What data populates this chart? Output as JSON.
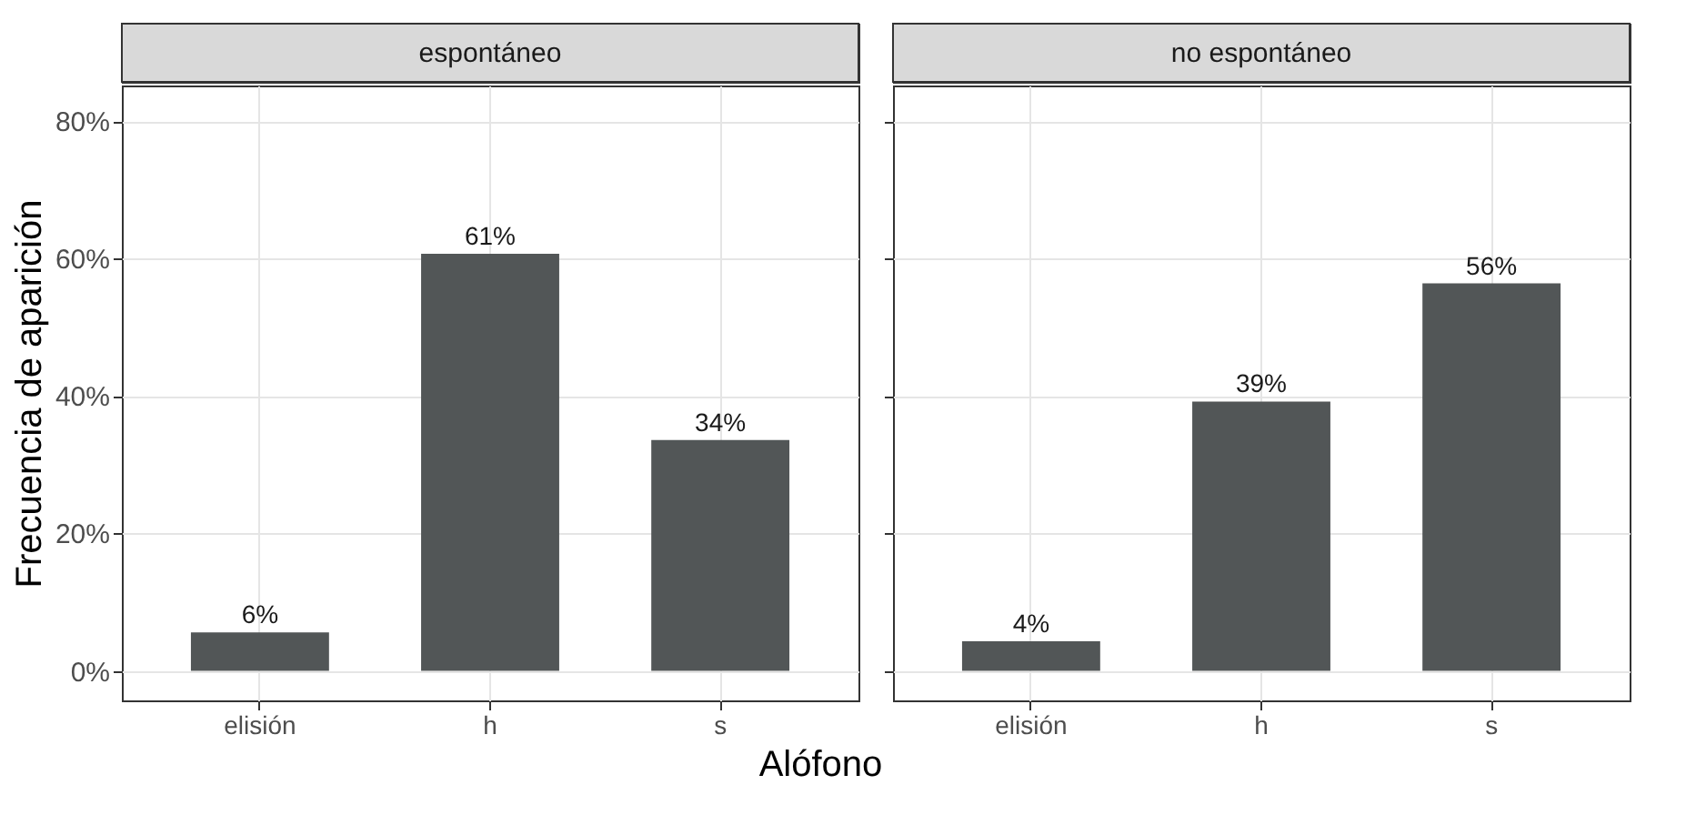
{
  "chart_data": [
    {
      "type": "bar",
      "title": "espontáneo",
      "ylabel": "Frecuencia de aparición",
      "xlabel": "Alófono",
      "categories": [
        "elisión",
        "h",
        "s"
      ],
      "values": [
        5.6,
        60.7,
        33.6
      ],
      "value_labels": [
        "6%",
        "61%",
        "34%"
      ],
      "color": "#525657",
      "ylim": [
        -4.3,
        85.2
      ],
      "yticks": [
        {
          "value": 0,
          "label": "0%"
        },
        {
          "value": 20,
          "label": "20%"
        },
        {
          "value": 40,
          "label": "40%"
        },
        {
          "value": 60,
          "label": "60%"
        },
        {
          "value": 80,
          "label": "80%"
        }
      ],
      "grid": true
    },
    {
      "type": "bar",
      "title": "no espontáneo",
      "categories": [
        "elisión",
        "h",
        "s"
      ],
      "values": [
        4.3,
        39.2,
        56.4
      ],
      "value_labels": [
        "4%",
        "39%",
        "56%"
      ],
      "color": "#525657",
      "ylim": [
        -4.3,
        85.2
      ],
      "yticks": [
        {
          "value": 0,
          "label": null
        },
        {
          "value": 20,
          "label": null
        },
        {
          "value": 40,
          "label": null
        },
        {
          "value": 60,
          "label": null
        },
        {
          "value": 80,
          "label": null
        }
      ],
      "grid": true,
      "tick_labels": "x"
    }
  ]
}
